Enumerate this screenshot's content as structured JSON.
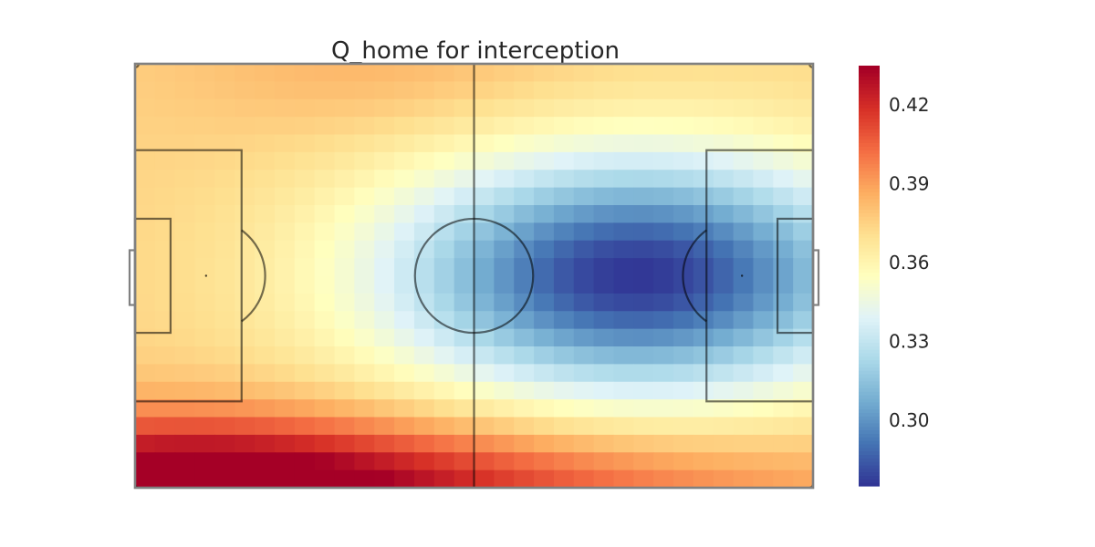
{
  "chart_data": {
    "type": "heatmap",
    "title": "Q_home for interception",
    "xlabel": "",
    "ylabel": "",
    "grid": false,
    "background": "football-pitch",
    "colormap": "RdYlBu_r",
    "colormap_stops": [
      "#313695",
      "#4575b4",
      "#74add1",
      "#abd9e9",
      "#e0f3f8",
      "#ffffbf",
      "#fee090",
      "#fdae61",
      "#f46d43",
      "#d73027",
      "#a50026"
    ],
    "value_range": [
      0.275,
      0.435
    ],
    "colorbar": {
      "ticks": [
        0.3,
        0.33,
        0.36,
        0.39,
        0.42
      ],
      "tick_labels": [
        "0.30",
        "0.33",
        "0.36",
        "0.39",
        "0.42"
      ],
      "placement": "right"
    },
    "grid_shape": [
      24,
      34
    ],
    "field_model": {
      "description": "smooth value field over the pitch, low (blue) in the attacking half centre, high (red) along the bottom-left",
      "base": 0.375,
      "components": [
        {
          "kind": "gaussian",
          "center_x": 0.74,
          "center_y": 0.5,
          "sigma_x": 0.26,
          "sigma_y": 0.2,
          "amplitude": -0.1
        },
        {
          "kind": "gaussian",
          "center_x": 0.05,
          "center_y": 1.0,
          "sigma_x": 0.3,
          "sigma_y": 0.12,
          "amplitude": 0.06
        },
        {
          "kind": "gaussian",
          "center_x": 0.5,
          "center_y": 1.0,
          "sigma_x": 0.45,
          "sigma_y": 0.1,
          "amplitude": 0.03
        },
        {
          "kind": "gaussian",
          "center_x": 0.35,
          "center_y": 0.0,
          "sigma_x": 0.2,
          "sigma_y": 0.12,
          "amplitude": 0.01
        }
      ]
    }
  },
  "colors": {
    "pitch_lines": "#000000",
    "pitch_outline": "#808080"
  }
}
